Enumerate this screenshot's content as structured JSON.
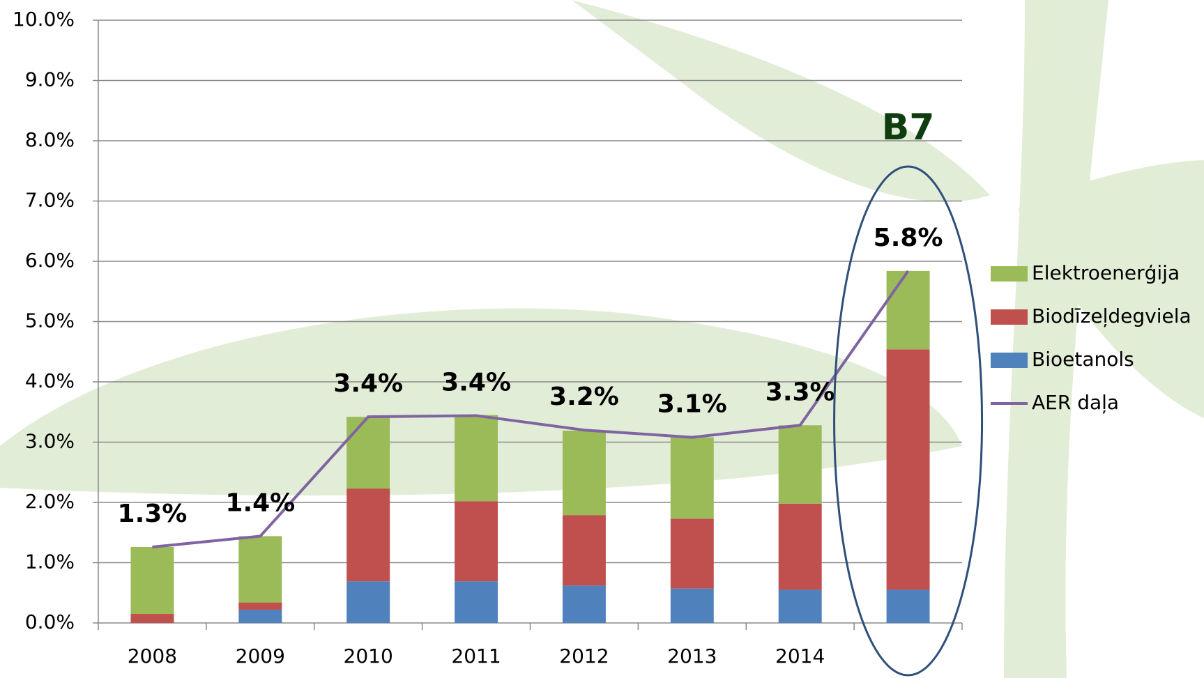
{
  "chart_data": {
    "type": "bar",
    "categories": [
      "2008",
      "2009",
      "2010",
      "2011",
      "2012",
      "2013",
      "2014",
      null
    ],
    "series": [
      {
        "name": "Elektroenerģija",
        "color": "#9bbb59",
        "values": [
          1.11,
          1.1,
          1.19,
          1.43,
          1.4,
          1.35,
          1.3,
          1.3
        ]
      },
      {
        "name": "Biodīzeļdegviela",
        "color": "#c0504d",
        "values": [
          0.15,
          0.12,
          1.54,
          1.33,
          1.17,
          1.16,
          1.43,
          3.99
        ]
      },
      {
        "name": "Bioetanols",
        "color": "#4f81bd",
        "values": [
          0,
          0.22,
          0.69,
          0.69,
          0.62,
          0.57,
          0.55,
          0.55
        ]
      },
      {
        "name": "AER daļa",
        "color": "#8064a2",
        "type": "line",
        "values": [
          1.26,
          1.44,
          3.42,
          3.44,
          3.2,
          3.08,
          3.28,
          5.84
        ],
        "value_labels": [
          "1.3%",
          "1.4%",
          "3.4%",
          "3.4%",
          "3.2%",
          "3.1%",
          "3.3%",
          "5.8%"
        ]
      }
    ],
    "ylim": [
      0,
      10
    ],
    "yticks": [
      {
        "value": 0,
        "label": "0.0%"
      },
      {
        "value": 1,
        "label": "1.0%"
      },
      {
        "value": 2,
        "label": "2.0%"
      },
      {
        "value": 3,
        "label": "3.0%"
      },
      {
        "value": 4,
        "label": "4.0%"
      },
      {
        "value": 5,
        "label": "5.0%"
      },
      {
        "value": 6,
        "label": "6.0%"
      },
      {
        "value": 7,
        "label": "7.0%"
      },
      {
        "value": 8,
        "label": "8.0%"
      },
      {
        "value": 9,
        "label": "9.0%"
      },
      {
        "value": 10,
        "label": "10.0%"
      }
    ],
    "grid": true,
    "legend": "right",
    "annotation": "B7"
  }
}
